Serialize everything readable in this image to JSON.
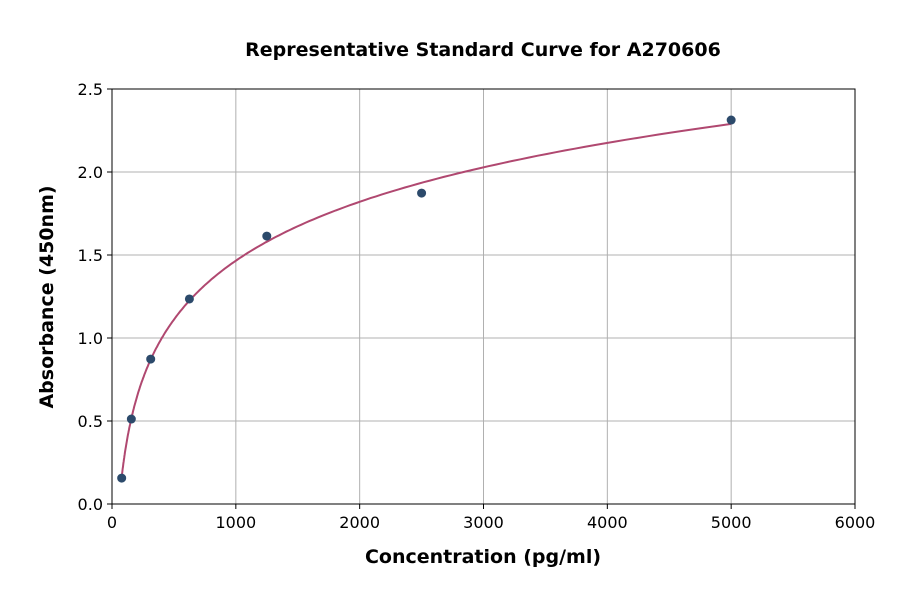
{
  "chart_data": {
    "type": "scatter",
    "title": "Representative Standard Curve for A270606",
    "xlabel": "Concentration (pg/ml)",
    "ylabel": "Absorbance (450nm)",
    "xlim": [
      0,
      6000
    ],
    "ylim": [
      0,
      2.5
    ],
    "xticks": [
      0,
      1000,
      2000,
      3000,
      4000,
      5000,
      6000
    ],
    "yticks": [
      "0.0",
      "0.5",
      "1.0",
      "1.5",
      "2.0",
      "2.5"
    ],
    "grid": true,
    "fit": "logarithmic",
    "points": [
      {
        "x": 78.125,
        "y": 0.156
      },
      {
        "x": 156.25,
        "y": 0.512
      },
      {
        "x": 312.5,
        "y": 0.873
      },
      {
        "x": 625,
        "y": 1.235
      },
      {
        "x": 1250,
        "y": 1.614
      },
      {
        "x": 2500,
        "y": 1.873
      },
      {
        "x": 5000,
        "y": 2.313
      }
    ],
    "colors": {
      "points": "#2c4a6b",
      "curve": "#b04870",
      "grid": "#b0b0b0"
    }
  }
}
